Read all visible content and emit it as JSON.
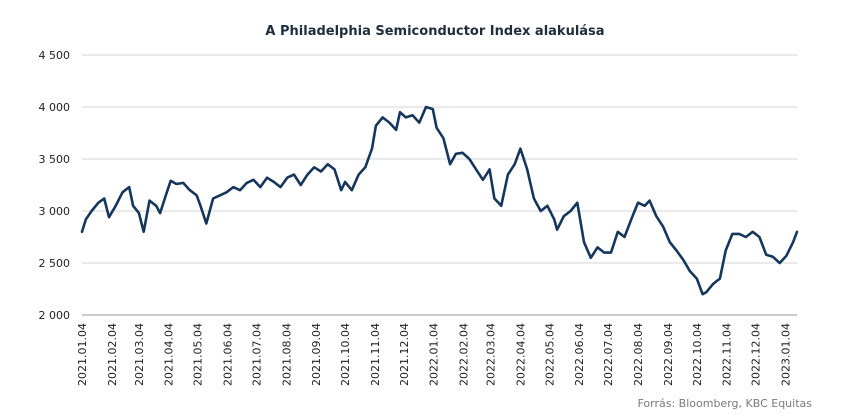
{
  "chart_data": {
    "type": "line",
    "title": "A Philadelphia  Semiconductor Index  alakulása",
    "source": "Forrás: Bloomberg,  KBC Equitas",
    "ylim": [
      2000,
      4500
    ],
    "yticks": [
      2000,
      2500,
      3000,
      3500,
      4000,
      4500
    ],
    "ytick_labels": [
      "2 000",
      "2 500",
      "3 000",
      "3 500",
      "4 000",
      "4 500"
    ],
    "xlim": [
      "2021-01-04",
      "2023-01-16"
    ],
    "x_tick_labels": [
      "2021.01.04",
      "2021.02.04",
      "2021.03.04",
      "2021.04.04",
      "2021.05.04",
      "2021.06.04",
      "2021.07.04",
      "2021.08.04",
      "2021.09.04",
      "2021.10.04",
      "2021.11.04",
      "2021.12.04",
      "2022.01.04",
      "2022.02.04",
      "2022.03.04",
      "2022.04.04",
      "2022.05.04",
      "2022.06.04",
      "2022.07.04",
      "2022.08.04",
      "2022.09.04",
      "2022.10.04",
      "2022.11.04",
      "2022.12.04",
      "2023.01.04"
    ],
    "grid": true,
    "line_color": "#16365c",
    "series": [
      {
        "x": [
          "2021-01-04",
          "2021-01-08",
          "2021-01-14",
          "2021-01-21",
          "2021-01-27",
          "2021-02-01",
          "2021-02-08",
          "2021-02-15",
          "2021-02-22",
          "2021-02-26",
          "2021-03-04",
          "2021-03-09",
          "2021-03-15",
          "2021-03-22",
          "2021-03-26",
          "2021-04-01",
          "2021-04-06",
          "2021-04-12",
          "2021-04-19",
          "2021-04-26",
          "2021-05-03",
          "2021-05-07",
          "2021-05-13",
          "2021-05-20",
          "2021-05-27",
          "2021-06-03",
          "2021-06-10",
          "2021-06-17",
          "2021-06-24",
          "2021-07-01",
          "2021-07-08",
          "2021-07-15",
          "2021-07-22",
          "2021-07-29",
          "2021-08-05",
          "2021-08-12",
          "2021-08-19",
          "2021-08-26",
          "2021-09-02",
          "2021-09-09",
          "2021-09-16",
          "2021-09-23",
          "2021-09-30",
          "2021-10-04",
          "2021-10-11",
          "2021-10-18",
          "2021-10-25",
          "2021-11-01",
          "2021-11-05",
          "2021-11-12",
          "2021-11-19",
          "2021-11-26",
          "2021-11-30",
          "2021-12-06",
          "2021-12-13",
          "2021-12-20",
          "2021-12-27",
          "2022-01-03",
          "2022-01-07",
          "2022-01-14",
          "2022-01-21",
          "2022-01-27",
          "2022-02-03",
          "2022-02-10",
          "2022-02-17",
          "2022-02-24",
          "2022-03-03",
          "2022-03-08",
          "2022-03-15",
          "2022-03-22",
          "2022-03-29",
          "2022-04-04",
          "2022-04-11",
          "2022-04-18",
          "2022-04-25",
          "2022-05-02",
          "2022-05-09",
          "2022-05-12",
          "2022-05-19",
          "2022-05-26",
          "2022-06-02",
          "2022-06-09",
          "2022-06-16",
          "2022-06-23",
          "2022-06-30",
          "2022-07-07",
          "2022-07-14",
          "2022-07-21",
          "2022-07-28",
          "2022-08-04",
          "2022-08-11",
          "2022-08-16",
          "2022-08-23",
          "2022-08-30",
          "2022-09-06",
          "2022-09-13",
          "2022-09-20",
          "2022-09-27",
          "2022-10-04",
          "2022-10-10",
          "2022-10-14",
          "2022-10-21",
          "2022-10-28",
          "2022-11-03",
          "2022-11-10",
          "2022-11-17",
          "2022-11-24",
          "2022-12-01",
          "2022-12-08",
          "2022-12-15",
          "2022-12-22",
          "2022-12-29",
          "2023-01-05",
          "2023-01-12",
          "2023-01-16"
        ],
        "values": [
          2800,
          2920,
          3000,
          3080,
          3120,
          2940,
          3050,
          3180,
          3230,
          3050,
          2980,
          2800,
          3100,
          3050,
          2980,
          3150,
          3290,
          3260,
          3270,
          3200,
          3150,
          3050,
          2880,
          3120,
          3150,
          3180,
          3230,
          3200,
          3270,
          3300,
          3230,
          3320,
          3280,
          3230,
          3320,
          3350,
          3250,
          3350,
          3420,
          3380,
          3450,
          3400,
          3200,
          3280,
          3200,
          3350,
          3420,
          3600,
          3820,
          3900,
          3850,
          3780,
          3950,
          3900,
          3920,
          3850,
          4000,
          3980,
          3800,
          3700,
          3450,
          3550,
          3560,
          3500,
          3400,
          3300,
          3400,
          3120,
          3050,
          3350,
          3450,
          3600,
          3400,
          3120,
          3000,
          3050,
          2920,
          2820,
          2950,
          3000,
          3080,
          2700,
          2550,
          2650,
          2600,
          2600,
          2800,
          2750,
          2920,
          3080,
          3050,
          3100,
          2950,
          2850,
          2700,
          2620,
          2530,
          2420,
          2350,
          2200,
          2220,
          2300,
          2350,
          2620,
          2780,
          2780,
          2750,
          2800,
          2750,
          2580,
          2560,
          2500,
          2570,
          2700,
          2800
        ]
      }
    ]
  }
}
